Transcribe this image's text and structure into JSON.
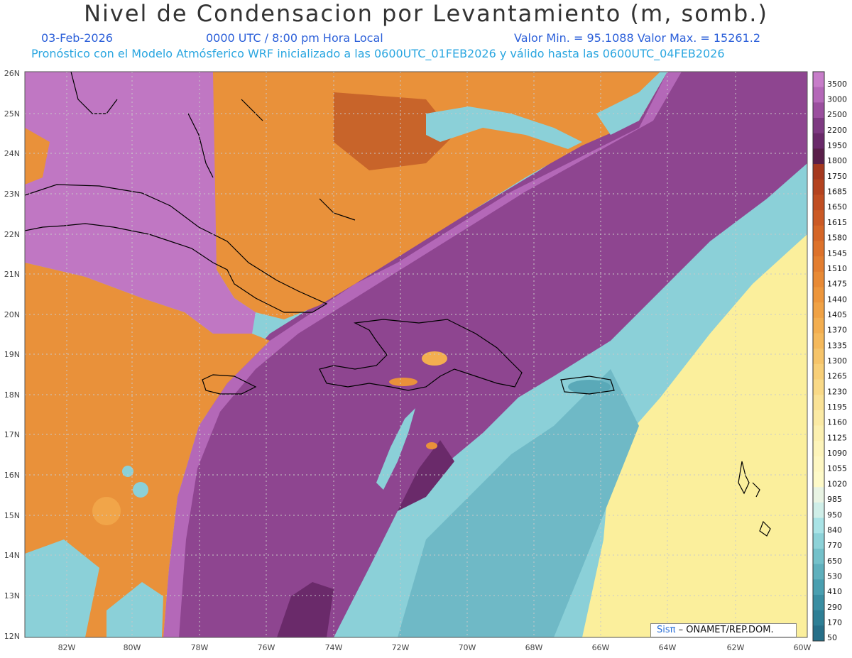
{
  "header": {
    "title": "Nivel de Condensacion por Levantamiento (m, somb.)",
    "date": "03-Feb-2026",
    "time": "0000 UTC / 8:00 pm Hora Local",
    "minmax": "Valor Min. = 95.1088   Valor Max. = 15261.2",
    "forecast": "Pronóstico con el Modelo Atmósferico WRF inicializado a las 0600UTC_01FEB2026 y válido hasta las  0600UTC_04FEB2026"
  },
  "axes": {
    "lat_labels": [
      "26N",
      "25N",
      "24N",
      "23N",
      "22N",
      "21N",
      "20N",
      "19N",
      "18N",
      "17N",
      "16N",
      "15N",
      "14N",
      "13N",
      "12N"
    ],
    "lon_labels": [
      "82W",
      "80W",
      "78W",
      "76W",
      "74W",
      "72W",
      "70W",
      "68W",
      "66W",
      "64W",
      "62W",
      "60W"
    ]
  },
  "colorbar": {
    "levels": [
      "3500",
      "3000",
      "2500",
      "2200",
      "1950",
      "1800",
      "1750",
      "1685",
      "1650",
      "1615",
      "1580",
      "1545",
      "1510",
      "1475",
      "1440",
      "1405",
      "1370",
      "1335",
      "1300",
      "1265",
      "1230",
      "1195",
      "1160",
      "1125",
      "1090",
      "1055",
      "1020",
      "985",
      "950",
      "840",
      "770",
      "650",
      "530",
      "410",
      "290",
      "170",
      "50"
    ],
    "colors": [
      "#c77dc9",
      "#b468b8",
      "#9a4f9e",
      "#7e3a82",
      "#6a2a6a",
      "#5a1f4a",
      "#a5391f",
      "#b4431f",
      "#c04e22",
      "#cb5a25",
      "#d56627",
      "#dd722b",
      "#e37e30",
      "#e88a35",
      "#ed963c",
      "#f0a245",
      "#f3ae50",
      "#f5b95c",
      "#f6c46a",
      "#f8cf78",
      "#f9d987",
      "#fae296",
      "#fbeaa4",
      "#fcf0b0",
      "#fdf4ba",
      "#fef7c2",
      "#fefac8",
      "#e9f4e4",
      "#cfeee8",
      "#a9e3e6",
      "#8dd2d8",
      "#74c1ca",
      "#5fb0bd",
      "#4a9fb0",
      "#3a8ea2",
      "#2e7f95",
      "#266f88"
    ]
  },
  "credit": {
    "brand": "Sisπ",
    "text": "– ONAMET/REP.DOM."
  },
  "colors": {
    "purple_light": "#b468b8",
    "purple": "#8e4590",
    "purple_dark": "#6a2a6a",
    "orange": "#e9913a",
    "yellow": "#fbef9c",
    "cyan": "#8bd0d8",
    "teal": "#5aa9b8"
  }
}
